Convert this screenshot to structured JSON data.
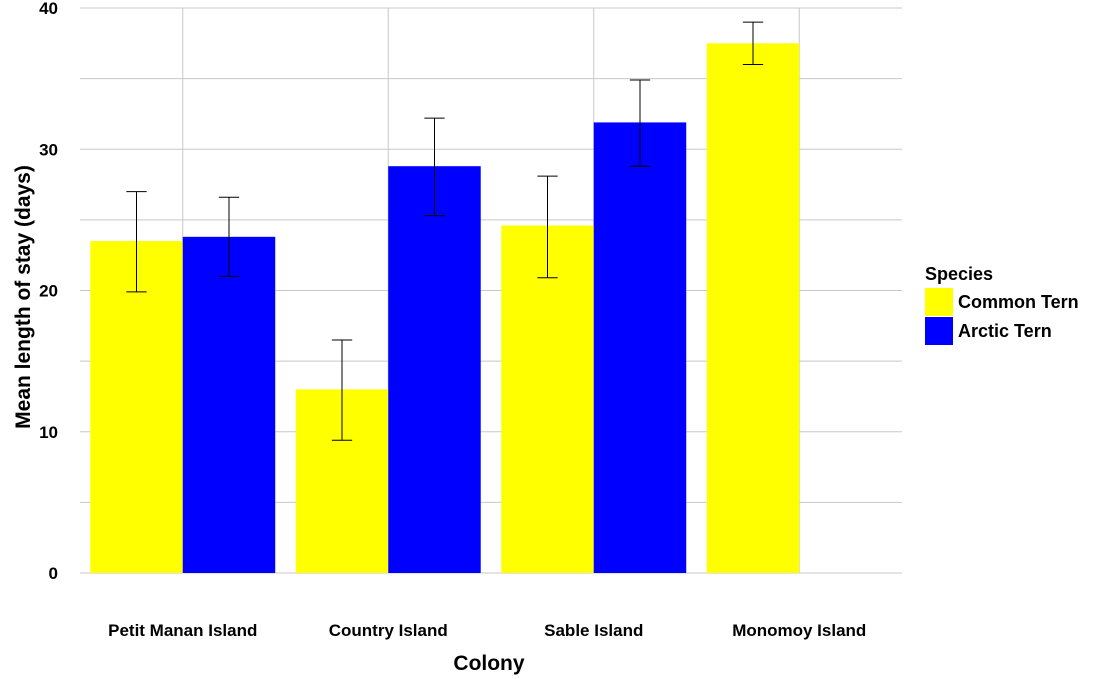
{
  "chart_data": {
    "type": "bar",
    "title": "",
    "xlabel": "Colony",
    "ylabel": "Mean length of stay (days)",
    "ylim": [
      0,
      40
    ],
    "yticks": [
      "0",
      "10",
      "20",
      "30",
      "40"
    ],
    "grid": true,
    "legend_title": "Species",
    "legend_position": "right",
    "categories": [
      "Petit Manan Island",
      "Country Island",
      "Sable Island",
      "Monomoy Island"
    ],
    "series": [
      {
        "name": "Common Tern",
        "color": "#ffff00",
        "values": [
          23.5,
          13.0,
          24.6,
          37.5
        ],
        "error_low": [
          19.9,
          9.4,
          20.9,
          36.0
        ],
        "error_high": [
          27.0,
          16.5,
          28.1,
          39.0
        ]
      },
      {
        "name": "Arctic Tern",
        "color": "#0000ff",
        "values": [
          23.8,
          28.8,
          31.9,
          null
        ],
        "error_low": [
          21.0,
          25.3,
          28.8,
          null
        ],
        "error_high": [
          26.6,
          32.2,
          34.9,
          null
        ]
      }
    ]
  }
}
